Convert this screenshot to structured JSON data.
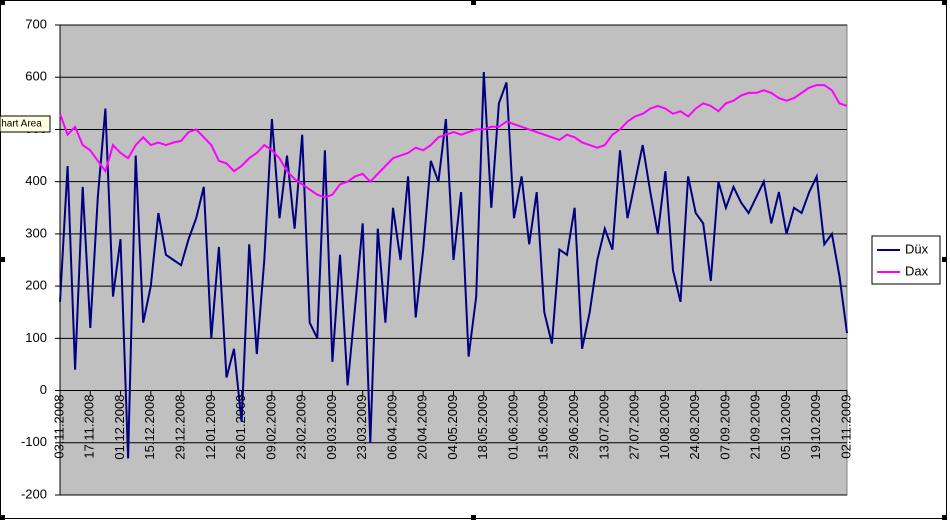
{
  "tooltip": "Chart Area",
  "chart_data": {
    "type": "line",
    "categories": [
      "03.11.2008",
      null,
      null,
      null,
      "17.11.2008",
      null,
      null,
      null,
      "01.12.2008",
      null,
      null,
      null,
      "15.12.2008",
      null,
      null,
      null,
      "29.12.2008",
      null,
      null,
      null,
      "12.01.2009",
      null,
      null,
      null,
      "26.01.2009",
      null,
      null,
      null,
      "09.02.2009",
      null,
      null,
      null,
      "23.02.2009",
      null,
      null,
      null,
      "09.03.2009",
      null,
      null,
      null,
      "23.03.2009",
      null,
      null,
      null,
      "06.04.2009",
      null,
      null,
      null,
      "20.04.2009",
      null,
      null,
      null,
      "04.05.2009",
      null,
      null,
      null,
      "18.05.2009",
      null,
      null,
      null,
      "01.06.2009",
      null,
      null,
      null,
      "15.06.2009",
      null,
      null,
      null,
      "29.06.2009",
      null,
      null,
      null,
      "13.07.2009",
      null,
      null,
      null,
      "27.07.2009",
      null,
      null,
      null,
      "10.08.2009",
      null,
      null,
      null,
      "24.08.2009",
      null,
      null,
      null,
      "07.09.2009",
      null,
      null,
      null,
      "21.09.2009",
      null,
      null,
      null,
      "05.10.2009",
      null,
      null,
      null,
      "19.10.2009",
      null,
      null,
      null,
      "02.11.2009"
    ],
    "series": [
      {
        "name": "Düx",
        "color": "#000080",
        "values": [
          170,
          430,
          40,
          390,
          120,
          370,
          540,
          180,
          290,
          -130,
          450,
          130,
          200,
          340,
          260,
          250,
          240,
          290,
          330,
          390,
          100,
          275,
          25,
          80,
          -60,
          280,
          70,
          250,
          520,
          330,
          450,
          310,
          490,
          130,
          100,
          460,
          55,
          260,
          10,
          160,
          320,
          -100,
          310,
          130,
          350,
          250,
          410,
          140,
          270,
          440,
          400,
          520,
          250,
          380,
          65,
          180,
          610,
          350,
          550,
          590,
          330,
          410,
          280,
          380,
          150,
          90,
          270,
          260,
          350,
          80,
          150,
          250,
          310,
          270,
          460,
          330,
          400,
          470,
          380,
          300,
          420,
          230,
          170,
          410,
          340,
          320,
          210,
          400,
          350,
          390,
          360,
          340,
          370,
          400,
          320,
          380,
          300,
          350,
          340,
          380,
          410,
          280,
          300,
          220,
          110
        ]
      },
      {
        "name": "Dax",
        "color": "#ff00ff",
        "values": [
          530,
          490,
          505,
          470,
          460,
          440,
          420,
          470,
          455,
          445,
          470,
          485,
          470,
          475,
          470,
          475,
          478,
          495,
          500,
          485,
          470,
          440,
          435,
          420,
          430,
          445,
          455,
          470,
          460,
          445,
          420,
          405,
          395,
          385,
          375,
          370,
          375,
          395,
          400,
          410,
          415,
          400,
          415,
          430,
          445,
          450,
          455,
          465,
          460,
          470,
          485,
          490,
          495,
          490,
          495,
          500,
          500,
          505,
          505,
          515,
          510,
          505,
          500,
          495,
          490,
          485,
          480,
          490,
          485,
          475,
          470,
          465,
          470,
          490,
          500,
          515,
          525,
          530,
          540,
          545,
          540,
          530,
          535,
          525,
          540,
          550,
          545,
          535,
          550,
          555,
          565,
          570,
          570,
          575,
          570,
          560,
          555,
          560,
          570,
          580,
          585,
          585,
          575,
          550,
          545
        ]
      }
    ],
    "ylim": [
      -200,
      700
    ],
    "yticks": [
      -200,
      -100,
      0,
      100,
      200,
      300,
      400,
      500,
      600,
      700
    ],
    "grid": true,
    "legend": "right"
  }
}
